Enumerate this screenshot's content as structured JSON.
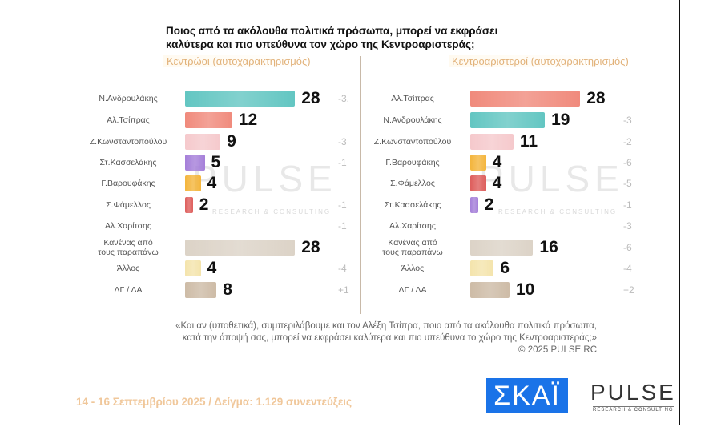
{
  "title_line1": "Ποιος από τα ακόλουθα πολιτικά πρόσωπα, μπορεί να εκφράσει",
  "title_line2": "καλύτερα και πιο υπεύθυνα τον χώρο της Κεντροαριστεράς;",
  "watermark": "PULSE",
  "watermark_sub": "RESEARCH & CONSULTING",
  "note_line1": "«Και αν (υποθετικά), συμπεριλάβουμε και τον Αλέξη Τσίπρα, ποιο από τα ακόλουθα πολιτικά πρόσωπα,",
  "note_line2": "κατά την άποψή σας, μπορεί να εκφράσει καλύτερα και πιο υπεύθυνα το χώρο της Κεντροαριστεράς;»",
  "copyright": "© 2025 PULSE RC",
  "footer": "14 - 16 Σεπτεμβρίου 2025  /  Δείγμα:  1.129 συνεντεύξεις",
  "logos": {
    "skai": "ΣΚΑΪ",
    "pulse": "PULSE",
    "pulse_sub": "RESEARCH & CONSULTING",
    "skai_color": "#1a73e8"
  },
  "chart_data": [
    {
      "type": "bar",
      "orientation": "horizontal",
      "title": "Κεντρώοι (αυτοχαρακτηρισμός)",
      "categories": [
        "Ν.Ανδρουλάκης",
        "Αλ.Τσίπρας",
        "Ζ.Κωνσταντοπούλου",
        "Στ.Κασσελάκης",
        "Γ.Βαρουφάκης",
        "Σ.Φάμελλος",
        "Αλ.Χαρίτσης",
        "Κανένας από τους παραπάνω",
        "Άλλος",
        "ΔΓ / ΔΑ"
      ],
      "values": [
        28,
        12,
        9,
        5,
        4,
        2,
        null,
        28,
        4,
        8
      ],
      "changes": [
        "-3.",
        "",
        "-3",
        "-1",
        "",
        "-1",
        "-1",
        "",
        "-4",
        "+1"
      ],
      "colors": [
        "#63c6c2",
        "#f08a7c",
        "#f5c9cc",
        "#a57fd9",
        "#f4b53c",
        "#de5e5c",
        "#ffffff",
        "#dcd3c7",
        "#f4e4ac",
        "#cdbba6"
      ]
    },
    {
      "type": "bar",
      "orientation": "horizontal",
      "title": "Κεντροαριστεροί (αυτοχαρακτηρισμός)",
      "categories": [
        "Αλ.Τσίπρας",
        "Ν.Ανδρουλάκης",
        "Ζ.Κωνσταντοπούλου",
        "Γ.Βαρουφάκης",
        "Σ.Φάμελλος",
        "Στ.Κασσελάκης",
        "Αλ.Χαρίτσης",
        "Κανένας από τους παραπάνω",
        "Άλλος",
        "ΔΓ / ΔΑ"
      ],
      "values": [
        28,
        19,
        11,
        4,
        4,
        2,
        null,
        16,
        6,
        10
      ],
      "changes": [
        "",
        "-3",
        "-2",
        "-6",
        "-5",
        "-1",
        "-3",
        "-6",
        "-4",
        "+2"
      ],
      "colors": [
        "#f08a7c",
        "#63c6c2",
        "#f5c9cc",
        "#f4b53c",
        "#de5e5c",
        "#a57fd9",
        "#ffffff",
        "#dcd3c7",
        "#f4e4ac",
        "#cdbba6"
      ]
    }
  ]
}
